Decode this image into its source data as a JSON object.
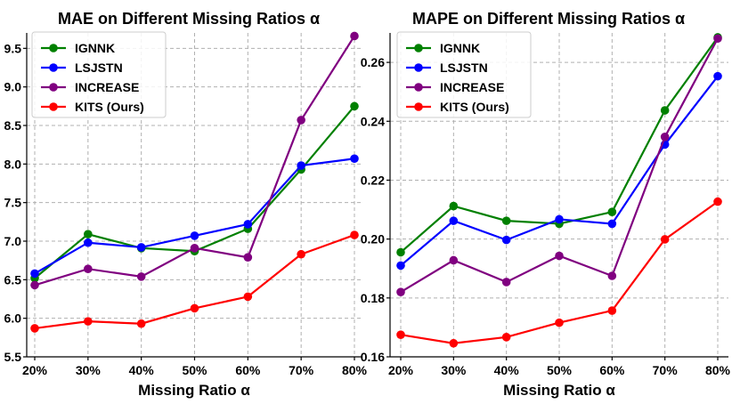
{
  "chart_data": [
    {
      "type": "line",
      "title": "MAE on Different Missing Ratios α",
      "xlabel": "Missing Ratio α",
      "ylabel": "",
      "categories": [
        "20%",
        "30%",
        "40%",
        "50%",
        "60%",
        "70%",
        "80%"
      ],
      "ylim": [
        5.5,
        9.7
      ],
      "yticks": [
        "5.5",
        "6.0",
        "6.5",
        "7.0",
        "7.5",
        "8.0",
        "8.5",
        "9.0",
        "9.5"
      ],
      "ytick_values": [
        5.5,
        6.0,
        6.5,
        7.0,
        7.5,
        8.0,
        8.5,
        9.0,
        9.5
      ],
      "grid": true,
      "legend_position": "top-left",
      "series": [
        {
          "name": "IGNNK",
          "color": "#008000",
          "values": [
            6.52,
            7.09,
            6.91,
            6.87,
            7.16,
            7.93,
            8.75
          ]
        },
        {
          "name": "LSJSTN",
          "color": "#0000ff",
          "values": [
            6.58,
            6.98,
            6.92,
            7.07,
            7.22,
            7.98,
            8.07
          ]
        },
        {
          "name": "INCREASE",
          "color": "#800080",
          "values": [
            6.43,
            6.64,
            6.54,
            6.91,
            6.79,
            8.57,
            9.66
          ]
        },
        {
          "name": "KITS (Ours)",
          "color": "#ff0000",
          "values": [
            5.87,
            5.96,
            5.93,
            6.13,
            6.28,
            6.83,
            7.08
          ]
        }
      ]
    },
    {
      "type": "line",
      "title": "MAPE on Different Missing Ratios α",
      "xlabel": "Missing Ratio α",
      "ylabel": "",
      "categories": [
        "20%",
        "30%",
        "40%",
        "50%",
        "60%",
        "70%",
        "80%"
      ],
      "ylim": [
        0.16,
        0.27
      ],
      "yticks": [
        "0.16",
        "0.18",
        "0.20",
        "0.22",
        "0.24",
        "0.26"
      ],
      "ytick_values": [
        0.16,
        0.18,
        0.2,
        0.22,
        0.24,
        0.26
      ],
      "grid": true,
      "legend_position": "top-left",
      "series": [
        {
          "name": "IGNNK",
          "color": "#008000",
          "values": [
            0.1955,
            0.2112,
            0.2062,
            0.2052,
            0.2092,
            0.2437,
            0.2685
          ]
        },
        {
          "name": "LSJSTN",
          "color": "#0000ff",
          "values": [
            0.191,
            0.2062,
            0.1997,
            0.2067,
            0.2052,
            0.2321,
            0.2553
          ]
        },
        {
          "name": "INCREASE",
          "color": "#800080",
          "values": [
            0.182,
            0.1928,
            0.1854,
            0.1943,
            0.1875,
            0.2347,
            0.2681
          ]
        },
        {
          "name": "KITS (Ours)",
          "color": "#ff0000",
          "values": [
            0.1675,
            0.1646,
            0.1667,
            0.1716,
            0.1757,
            0.1999,
            0.2127
          ]
        }
      ]
    }
  ]
}
